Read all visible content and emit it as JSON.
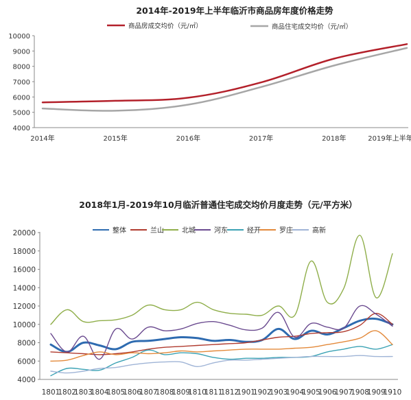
{
  "chart_data": [
    {
      "type": "line",
      "title": "2014年-2019年上半年临沂市商品房年度价格走势",
      "categories": [
        "2014年",
        "2015年",
        "2016年",
        "2017年",
        "2018年",
        "2019年上半年"
      ],
      "ylim": [
        4000,
        10000
      ],
      "yticks": [
        4000,
        5000,
        6000,
        7000,
        8000,
        9000,
        10000
      ],
      "grid": false,
      "legend": "top",
      "series": [
        {
          "name": "商品房成交均价（元/㎡）",
          "color": "#b3202a",
          "values": [
            5650,
            5750,
            5950,
            6950,
            8500,
            9450
          ]
        },
        {
          "name": "商品住宅成交均价（元/㎡）",
          "color": "#a6a6a6",
          "values": [
            5250,
            5100,
            5500,
            6650,
            8050,
            9200
          ]
        }
      ]
    },
    {
      "type": "line",
      "title": "2018年1月-2019年10月临沂普通住宅成交均价月度走势（元/平方米）",
      "categories": [
        "1801",
        "1802",
        "1803",
        "1804",
        "1805",
        "1806",
        "1807",
        "1808",
        "1809",
        "1810",
        "1811",
        "1812",
        "1901",
        "1902",
        "1903",
        "1904",
        "1905",
        "1906",
        "1907",
        "1908",
        "1909",
        "1910"
      ],
      "ylim": [
        4000,
        20000
      ],
      "yticks": [
        4000,
        6000,
        8000,
        10000,
        12000,
        14000,
        16000,
        18000,
        20000
      ],
      "grid": false,
      "legend": "top",
      "series": [
        {
          "name": "整体",
          "color": "#2e6bb0",
          "width": 3,
          "values": [
            7800,
            7000,
            8000,
            7700,
            7300,
            8100,
            8200,
            8400,
            8600,
            8500,
            8200,
            8300,
            8100,
            8300,
            9500,
            8400,
            9300,
            8900,
            9600,
            10400,
            10600,
            10000
          ]
        },
        {
          "name": "兰山",
          "color": "#b03a2e",
          "width": 1.4,
          "values": [
            7000,
            6900,
            6800,
            6700,
            6800,
            7000,
            7300,
            7500,
            7600,
            7700,
            7800,
            7900,
            8000,
            8300,
            8600,
            8700,
            9000,
            9100,
            9200,
            9900,
            11200,
            10000
          ]
        },
        {
          "name": "北城",
          "color": "#8fae4a",
          "width": 1.4,
          "values": [
            10000,
            11600,
            10300,
            10400,
            10500,
            11000,
            12100,
            11600,
            11600,
            12400,
            11600,
            11200,
            11100,
            11000,
            12000,
            11000,
            16900,
            12400,
            13900,
            19700,
            12900,
            17700
          ]
        },
        {
          "name": "河东",
          "color": "#6a4a8f",
          "width": 1.4,
          "values": [
            9000,
            7000,
            8700,
            6200,
            9500,
            8400,
            9700,
            9300,
            9500,
            10100,
            10300,
            9900,
            9400,
            9600,
            11300,
            8600,
            10100,
            9700,
            9600,
            12000,
            11100,
            9800
          ]
        },
        {
          "name": "经开",
          "color": "#3aa2b4",
          "width": 1.4,
          "values": [
            4400,
            5200,
            5100,
            5000,
            5800,
            6400,
            7200,
            6700,
            6900,
            6800,
            6400,
            6200,
            6300,
            6300,
            6400,
            6400,
            6500,
            7000,
            7300,
            7600,
            7300,
            7800
          ]
        },
        {
          "name": "罗庄",
          "color": "#e3893a",
          "width": 1.4,
          "values": [
            6000,
            6100,
            6600,
            7000,
            6700,
            6900,
            6800,
            6900,
            7100,
            7000,
            7100,
            7200,
            7300,
            7300,
            7300,
            7400,
            7500,
            7800,
            8100,
            8500,
            9300,
            7800
          ]
        },
        {
          "name": "高新",
          "color": "#9fb4d6",
          "width": 1.4,
          "values": [
            4900,
            4700,
            4900,
            5200,
            5300,
            5600,
            5800,
            5900,
            5900,
            5400,
            5800,
            6100,
            6100,
            6200,
            6300,
            6400,
            6500,
            6500,
            6500,
            6600,
            6500,
            6500
          ]
        }
      ]
    }
  ]
}
